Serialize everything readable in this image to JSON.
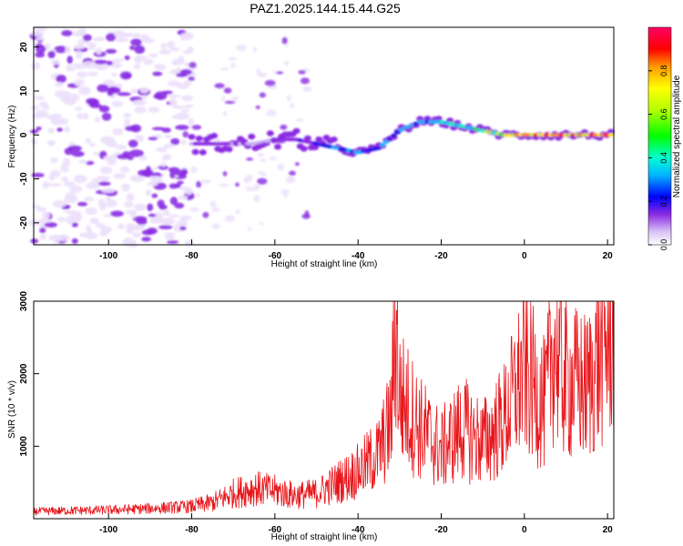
{
  "title": "PAZ1.2025.144.15.44.G25",
  "colors": {
    "snr_line": "#e8161b",
    "axis": "#000000",
    "blob_low": "#c9aef2",
    "blob_mid": "#7a2ee0",
    "blob_high": "#1a17e8"
  },
  "chart_data": [
    {
      "type": "heatmap",
      "title": "PAZ1.2025.144.15.44.G25",
      "xlabel": "Height of straight line (km)",
      "ylabel": "Frequency (Hz)",
      "xlim": [
        -118,
        21.5
      ],
      "ylim": [
        -25,
        24.5
      ],
      "x_ticks": [
        -100,
        -80,
        -60,
        -40,
        -20,
        0,
        20
      ],
      "y_ticks": [
        -20,
        -10,
        0,
        10,
        20
      ],
      "colorbar": {
        "label": "Normalized spectral amplitude",
        "range": [
          0,
          1
        ],
        "ticks": [
          0.0,
          0.2,
          0.4,
          0.6,
          0.8
        ],
        "colormap": "rainbow (white-purple-blue-cyan-green-yellow-orange-red-magenta)"
      },
      "dominant_ridge": {
        "x": [
          -80,
          -75,
          -70,
          -65,
          -60,
          -55,
          -50,
          -45,
          -40,
          -35,
          -30,
          -25,
          -20,
          -15,
          -10,
          -5,
          0,
          5,
          10,
          15,
          21
        ],
        "frequency": [
          -2,
          -2,
          -2,
          -2,
          -1,
          -1,
          -2,
          -3,
          -4,
          -3,
          1,
          3,
          3,
          2,
          1,
          0,
          0,
          0,
          0,
          0,
          0
        ],
        "amplitude": [
          0.15,
          0.18,
          0.15,
          0.15,
          0.15,
          0.2,
          0.3,
          0.35,
          0.35,
          0.3,
          0.35,
          0.4,
          0.45,
          0.45,
          0.55,
          0.75,
          0.8,
          0.85,
          0.85,
          0.85,
          0.85
        ]
      },
      "noise_region": {
        "x_range": [
          -118,
          -82
        ],
        "frequency_range": [
          -25,
          24.5
        ],
        "amplitude_range": [
          0,
          0.15
        ]
      }
    },
    {
      "type": "line",
      "xlabel": "Height of straight line (km)",
      "ylabel": "SNR (10 * v/v)",
      "xlim": [
        -118,
        21.5
      ],
      "ylim": [
        0,
        3000
      ],
      "x_ticks": [
        -100,
        -80,
        -60,
        -40,
        -20,
        0,
        20
      ],
      "y_ticks": [
        1000,
        2000,
        3000
      ],
      "series": [
        {
          "color": "#e8161b",
          "x": [
            -118,
            -110,
            -100,
            -90,
            -80,
            -75,
            -70,
            -65,
            -60,
            -55,
            -50,
            -45,
            -40,
            -35,
            -32,
            -31,
            -30,
            -25,
            -20,
            -15,
            -10,
            -5,
            0,
            5,
            7,
            10,
            15,
            20,
            21.5
          ],
          "y": [
            100,
            110,
            120,
            140,
            170,
            220,
            350,
            420,
            380,
            320,
            350,
            500,
            650,
            900,
            1350,
            2800,
            1700,
            1250,
            950,
            1250,
            1050,
            1350,
            2050,
            1550,
            2450,
            1900,
            1800,
            2500,
            2650
          ]
        }
      ]
    }
  ]
}
